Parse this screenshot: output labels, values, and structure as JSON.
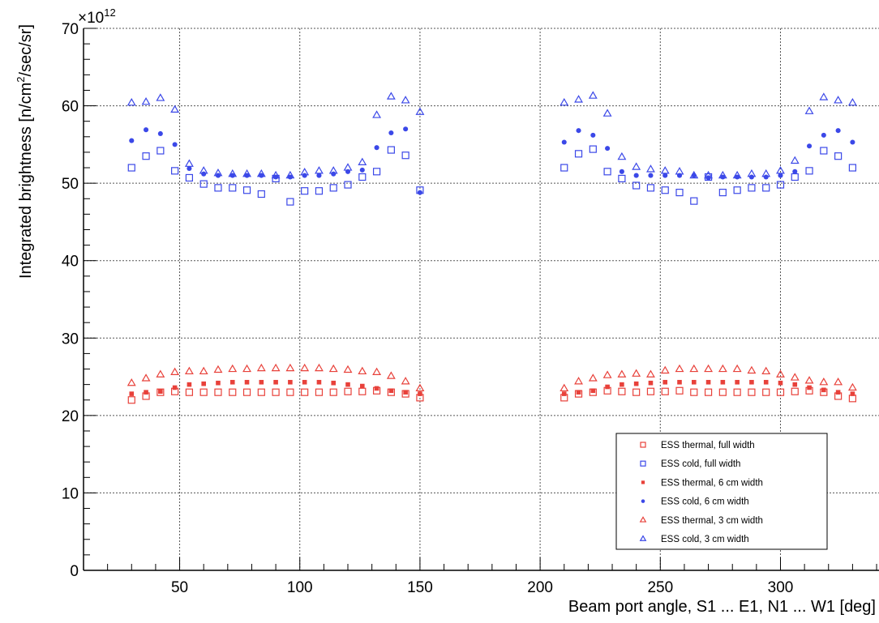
{
  "chart_data": {
    "type": "scatter",
    "title": "",
    "xlabel": "Beam port angle,  S1 ... E1, N1 ... W1 [deg]",
    "ylabel_prefix": "Integrated brightness [n/cm",
    "ylabel_sup": "2",
    "ylabel_suffix": "/sec/sr]",
    "y_multiplier_base": "×10",
    "y_multiplier_exp": "12",
    "xlim": [
      10,
      341
    ],
    "ylim": [
      0,
      70
    ],
    "x_ticks": [
      50,
      100,
      150,
      200,
      250,
      300
    ],
    "y_ticks": [
      0,
      10,
      20,
      30,
      40,
      50,
      60,
      70
    ],
    "grid": true,
    "legend_position": "bottom-right",
    "series": [
      {
        "name": "ESS thermal, full width",
        "color": "#e8413a",
        "marker": "open-square",
        "x": [
          30,
          36,
          42,
          48,
          54,
          60,
          66,
          72,
          78,
          84,
          90,
          96,
          102,
          108,
          114,
          120,
          126,
          132,
          138,
          144,
          150,
          210,
          216,
          222,
          228,
          234,
          240,
          246,
          252,
          258,
          264,
          270,
          276,
          282,
          288,
          294,
          300,
          306,
          312,
          318,
          324,
          330
        ],
        "y": [
          22.0,
          22.5,
          23.0,
          23.1,
          23.0,
          23.0,
          23.0,
          23.0,
          23.0,
          23.0,
          23.0,
          23.0,
          23.0,
          23.0,
          23.0,
          23.1,
          23.1,
          23.2,
          23.0,
          22.8,
          22.3,
          22.3,
          22.8,
          23.0,
          23.2,
          23.1,
          23.0,
          23.1,
          23.1,
          23.2,
          23.0,
          23.0,
          23.0,
          23.0,
          23.0,
          23.0,
          23.0,
          23.1,
          23.2,
          23.0,
          22.5,
          22.2
        ]
      },
      {
        "name": "ESS cold, full width",
        "color": "#3b48e8",
        "marker": "open-square",
        "x": [
          30,
          36,
          42,
          48,
          54,
          60,
          66,
          72,
          78,
          84,
          90,
          96,
          102,
          108,
          114,
          120,
          126,
          132,
          138,
          144,
          150,
          210,
          216,
          222,
          228,
          234,
          240,
          246,
          252,
          258,
          264,
          270,
          276,
          282,
          288,
          294,
          300,
          306,
          312,
          318,
          324,
          330
        ],
        "y": [
          52.0,
          53.5,
          54.2,
          51.6,
          50.7,
          49.9,
          49.4,
          49.4,
          49.1,
          48.6,
          50.6,
          47.6,
          49.0,
          49.0,
          49.4,
          49.8,
          50.8,
          51.5,
          54.3,
          53.6,
          49.1,
          52.0,
          53.8,
          54.4,
          51.5,
          50.6,
          49.7,
          49.4,
          49.1,
          48.8,
          47.7,
          50.8,
          48.8,
          49.1,
          49.4,
          49.4,
          49.8,
          50.8,
          51.6,
          54.2,
          53.5,
          52.0
        ]
      },
      {
        "name": "ESS thermal, 6 cm width",
        "color": "#e8413a",
        "marker": "filled-square",
        "x": [
          30,
          36,
          42,
          48,
          54,
          60,
          66,
          72,
          78,
          84,
          90,
          96,
          102,
          108,
          114,
          120,
          126,
          132,
          138,
          144,
          150,
          210,
          216,
          222,
          228,
          234,
          240,
          246,
          252,
          258,
          264,
          270,
          276,
          282,
          288,
          294,
          300,
          306,
          312,
          318,
          324,
          330
        ],
        "y": [
          22.8,
          23.0,
          23.1,
          23.6,
          24.0,
          24.1,
          24.2,
          24.3,
          24.3,
          24.3,
          24.3,
          24.3,
          24.3,
          24.3,
          24.2,
          24.0,
          23.8,
          23.5,
          23.2,
          23.0,
          22.8,
          22.8,
          23.0,
          23.2,
          23.7,
          24.0,
          24.1,
          24.2,
          24.3,
          24.3,
          24.3,
          24.3,
          24.3,
          24.3,
          24.3,
          24.3,
          24.2,
          24.0,
          23.6,
          23.3,
          23.0,
          22.8
        ]
      },
      {
        "name": "ESS cold, 6 cm width",
        "color": "#3b48e8",
        "marker": "filled-circle",
        "x": [
          30,
          36,
          42,
          48,
          54,
          60,
          66,
          72,
          78,
          84,
          90,
          96,
          102,
          108,
          114,
          120,
          126,
          132,
          138,
          144,
          150,
          210,
          216,
          222,
          228,
          234,
          240,
          246,
          252,
          258,
          264,
          270,
          276,
          282,
          288,
          294,
          300,
          306,
          312,
          318,
          324,
          330
        ],
        "y": [
          55.5,
          56.9,
          56.4,
          55.0,
          51.9,
          51.2,
          51.0,
          51.0,
          51.0,
          51.0,
          50.8,
          50.8,
          51.0,
          51.0,
          51.2,
          51.5,
          51.7,
          54.6,
          56.5,
          57.0,
          48.8,
          55.3,
          56.8,
          56.2,
          54.5,
          51.5,
          51.0,
          51.0,
          51.0,
          51.0,
          51.0,
          50.7,
          50.8,
          50.8,
          50.8,
          50.8,
          51.0,
          51.5,
          54.8,
          56.2,
          56.8,
          55.3
        ]
      },
      {
        "name": "ESS thermal, 3 cm width",
        "color": "#e8413a",
        "marker": "open-triangle",
        "x": [
          30,
          36,
          42,
          48,
          54,
          60,
          66,
          72,
          78,
          84,
          90,
          96,
          102,
          108,
          114,
          120,
          126,
          132,
          138,
          144,
          150,
          210,
          216,
          222,
          228,
          234,
          240,
          246,
          252,
          258,
          264,
          270,
          276,
          282,
          288,
          294,
          300,
          306,
          312,
          318,
          324,
          330
        ],
        "y": [
          24.2,
          24.8,
          25.3,
          25.6,
          25.7,
          25.7,
          25.9,
          26.0,
          26.0,
          26.1,
          26.1,
          26.1,
          26.1,
          26.1,
          26.0,
          25.9,
          25.7,
          25.6,
          25.1,
          24.4,
          23.5,
          23.5,
          24.4,
          24.8,
          25.2,
          25.3,
          25.4,
          25.3,
          25.8,
          26.0,
          26.0,
          26.0,
          26.0,
          26.0,
          25.8,
          25.7,
          25.3,
          24.9,
          24.5,
          24.3,
          24.3,
          23.6
        ]
      },
      {
        "name": "ESS cold, 3 cm width",
        "color": "#3b48e8",
        "marker": "open-triangle",
        "x": [
          30,
          36,
          42,
          48,
          54,
          60,
          66,
          72,
          78,
          84,
          90,
          96,
          102,
          108,
          114,
          120,
          126,
          132,
          138,
          144,
          150,
          210,
          216,
          222,
          228,
          234,
          240,
          246,
          252,
          258,
          264,
          270,
          276,
          282,
          288,
          294,
          300,
          306,
          312,
          318,
          324,
          330
        ],
        "y": [
          60.4,
          60.5,
          61.0,
          59.5,
          52.5,
          51.6,
          51.3,
          51.2,
          51.2,
          51.2,
          51.0,
          51.0,
          51.4,
          51.6,
          51.6,
          52.0,
          52.7,
          58.8,
          61.2,
          60.7,
          59.2,
          60.4,
          60.8,
          61.3,
          59.0,
          53.4,
          52.1,
          51.8,
          51.6,
          51.5,
          51.0,
          51.0,
          51.0,
          51.0,
          51.2,
          51.2,
          51.6,
          52.9,
          59.3,
          61.1,
          60.7,
          60.4
        ]
      }
    ]
  }
}
